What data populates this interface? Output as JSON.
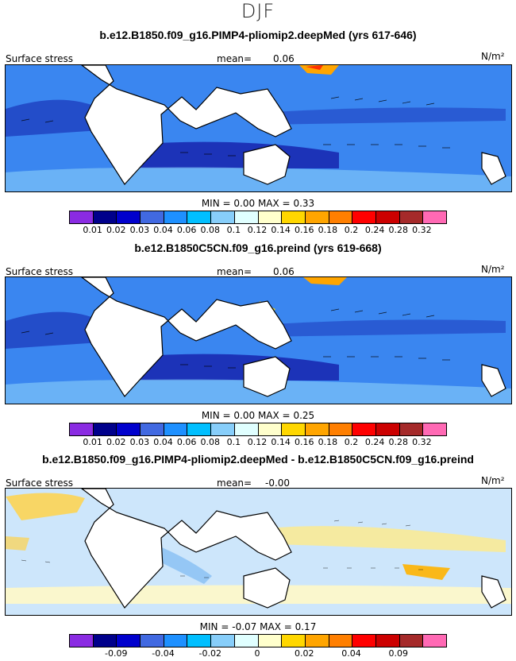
{
  "title": "DJF",
  "panels": [
    {
      "title": "b.e12.B1850.f09_g16.PIMP4-pliomip2.deepMed (yrs 617-646)",
      "left_label": "Surface stress",
      "mean_label": "mean=",
      "mean_value": "0.06",
      "units": "N/m²",
      "min_label": "MIN =",
      "min_value": "0.00",
      "max_label": "MAX =",
      "max_value": "0.33",
      "colors": [
        "#8a2be2",
        "#00008b",
        "#0000cd",
        "#4169e1",
        "#1e90ff",
        "#00bfff",
        "#87cefa",
        "#e0ffff",
        "#ffffcc",
        "#ffd700",
        "#ffa500",
        "#ff7f00",
        "#ff0000",
        "#cc0000",
        "#a52a2a",
        "#ff69b4"
      ],
      "tick_labels": [
        "0.01",
        "0.02",
        "0.03",
        "0.04",
        "0.06",
        "0.08",
        "0.1",
        "0.12",
        "0.14",
        "0.16",
        "0.18",
        "0.2",
        "0.24",
        "0.28",
        "0.32"
      ],
      "tick_positions": [
        1,
        2,
        3,
        4,
        5,
        6,
        7,
        8,
        9,
        10,
        11,
        12,
        13,
        14,
        15
      ]
    },
    {
      "title": "b.e12.B1850C5CN.f09_g16.preind (yrs 619-668)",
      "left_label": "Surface stress",
      "mean_label": "mean=",
      "mean_value": "0.06",
      "units": "N/m²",
      "min_label": "MIN =",
      "min_value": "0.00",
      "max_label": "MAX =",
      "max_value": "0.25",
      "colors": [
        "#8a2be2",
        "#00008b",
        "#0000cd",
        "#4169e1",
        "#1e90ff",
        "#00bfff",
        "#87cefa",
        "#e0ffff",
        "#ffffcc",
        "#ffd700",
        "#ffa500",
        "#ff7f00",
        "#ff0000",
        "#cc0000",
        "#a52a2a",
        "#ff69b4"
      ],
      "tick_labels": [
        "0.01",
        "0.02",
        "0.03",
        "0.04",
        "0.06",
        "0.08",
        "0.1",
        "0.12",
        "0.14",
        "0.16",
        "0.18",
        "0.2",
        "0.24",
        "0.28",
        "0.32"
      ],
      "tick_positions": [
        1,
        2,
        3,
        4,
        5,
        6,
        7,
        8,
        9,
        10,
        11,
        12,
        13,
        14,
        15
      ]
    },
    {
      "title": "b.e12.B1850.f09_g16.PIMP4-pliomip2.deepMed - b.e12.B1850C5CN.f09_g16.preind",
      "left_label": "Surface stress",
      "mean_label": "mean=",
      "mean_value": "-0.00",
      "units": "N/m²",
      "min_label": "MIN =",
      "min_value": "-0.07",
      "max_label": "MAX =",
      "max_value": "0.17",
      "colors": [
        "#8a2be2",
        "#00008b",
        "#0000cd",
        "#4169e1",
        "#1e90ff",
        "#00bfff",
        "#87cefa",
        "#e0ffff",
        "#ffffcc",
        "#ffd700",
        "#ffa500",
        "#ff7f00",
        "#ff0000",
        "#cc0000",
        "#a52a2a",
        "#ff69b4"
      ],
      "tick_labels": [
        "-0.09",
        "-0.04",
        "-0.02",
        "0",
        "0.02",
        "0.04",
        "0.09"
      ],
      "tick_positions": [
        2,
        4,
        6,
        8,
        10,
        12,
        14
      ]
    }
  ]
}
